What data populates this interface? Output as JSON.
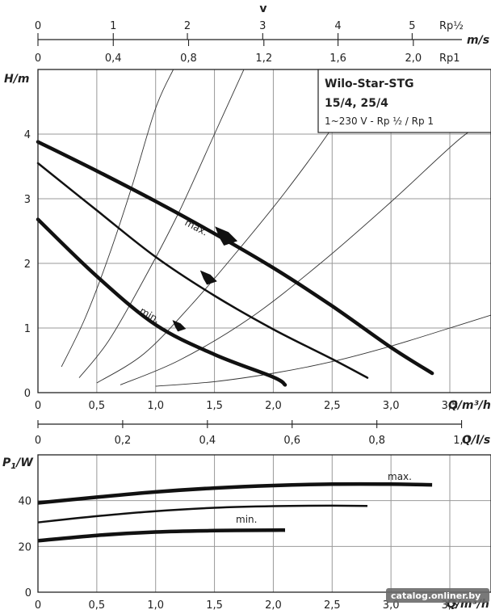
{
  "chart_data": [
    {
      "type": "line",
      "name_ref": "head-chart",
      "title": "Wilo-Star-STG",
      "title_line2": "15/4, 25/4",
      "subtitle": "1~230 V - Rp ½ / Rp 1",
      "xlabel": "Q/m³/h",
      "ylabel": "H/m",
      "xlim": [
        0,
        3.85
      ],
      "ylim": [
        0,
        5
      ],
      "x_ticks": [
        "0",
        "0,5",
        "1,0",
        "1,5",
        "2,0",
        "2,5",
        "3,0",
        "3,5"
      ],
      "x_tick_values": [
        0,
        0.5,
        1.0,
        1.5,
        2.0,
        2.5,
        3.0,
        3.5
      ],
      "y_ticks": [
        "0",
        "1",
        "2",
        "3",
        "4"
      ],
      "y_tick_values": [
        0,
        1,
        2,
        3,
        4
      ],
      "grid": true,
      "series": [
        {
          "name": "max.",
          "width": 4.5,
          "x": [
            0,
            0.5,
            1.0,
            1.5,
            2.0,
            2.5,
            3.0,
            3.35
          ],
          "y": [
            3.88,
            3.43,
            2.96,
            2.46,
            1.93,
            1.34,
            0.7,
            0.3
          ]
        },
        {
          "name": "",
          "width": 2.5,
          "x": [
            0,
            0.5,
            1.0,
            1.5,
            2.0,
            2.5,
            2.8
          ],
          "y": [
            3.55,
            2.82,
            2.1,
            1.5,
            0.98,
            0.52,
            0.23
          ]
        },
        {
          "name": "min.",
          "width": 4.5,
          "x": [
            0,
            0.5,
            1.0,
            1.5,
            2.0,
            2.1
          ],
          "y": [
            2.68,
            1.8,
            1.05,
            0.59,
            0.24,
            0.12
          ]
        }
      ],
      "system_curves": [
        {
          "x": [
            0.2,
            0.4,
            0.6,
            0.8,
            1.0,
            1.15
          ],
          "y": [
            0.4,
            1.15,
            2.1,
            3.2,
            4.4,
            5.0
          ]
        },
        {
          "x": [
            0.35,
            0.6,
            0.9,
            1.2,
            1.5,
            1.75
          ],
          "y": [
            0.23,
            0.8,
            1.75,
            2.8,
            4.0,
            5.0
          ]
        },
        {
          "x": [
            0.5,
            0.9,
            1.3,
            1.7,
            2.1,
            2.5,
            2.8
          ],
          "y": [
            0.15,
            0.6,
            1.35,
            2.2,
            3.1,
            4.1,
            5.0
          ]
        },
        {
          "x": [
            0.7,
            1.2,
            1.8,
            2.4,
            3.0,
            3.6,
            3.85
          ],
          "y": [
            0.12,
            0.5,
            1.15,
            2.0,
            2.95,
            3.95,
            4.2
          ]
        },
        {
          "x": [
            1.0,
            1.5,
            2.0,
            2.5,
            3.0,
            3.5,
            3.85
          ],
          "y": [
            0.1,
            0.17,
            0.3,
            0.48,
            0.72,
            1.0,
            1.2
          ]
        }
      ],
      "markers": [
        {
          "x": 1.6,
          "y": 2.45,
          "size": 1.0
        },
        {
          "x": 1.45,
          "y": 1.8,
          "size": 0.75
        },
        {
          "x": 1.2,
          "y": 1.05,
          "size": 0.6
        }
      ],
      "top_axis_velocity": {
        "label": "v",
        "unit_label": "m/s",
        "rp_half_label": "Rp½",
        "rp1_label": "Rp1",
        "rp_half_ticks": [
          "0",
          "1",
          "2",
          "3",
          "4",
          "5"
        ],
        "rp_half_tick_values_q": [
          0,
          0.64,
          1.27,
          1.91,
          2.55,
          3.18
        ],
        "rp1_ticks": [
          "0",
          "0,4",
          "0,8",
          "1,2",
          "1,6",
          "2,0"
        ],
        "rp1_tick_values_q": [
          0,
          0.64,
          1.28,
          1.92,
          2.55,
          3.19
        ]
      },
      "ls_axis": {
        "label": "Q/l/s",
        "ticks": [
          "0",
          "0,2",
          "0,4",
          "0,6",
          "0,8",
          "1,0"
        ],
        "tick_values_q": [
          0,
          0.72,
          1.44,
          2.16,
          2.88,
          3.6
        ]
      }
    },
    {
      "type": "line",
      "name_ref": "power-chart",
      "xlabel": "Q/m³/h",
      "ylabel_main": "P",
      "ylabel_sub": "1",
      "ylabel_unit": "/W",
      "xlim": [
        0,
        3.85
      ],
      "ylim": [
        0,
        60
      ],
      "x_ticks": [
        "0",
        "0,5",
        "1,0",
        "1,5",
        "2,0",
        "2,5",
        "3,0",
        "3,5"
      ],
      "x_tick_values": [
        0,
        0.5,
        1.0,
        1.5,
        2.0,
        2.5,
        3.0,
        3.5
      ],
      "y_ticks": [
        "0",
        "20",
        "40"
      ],
      "y_tick_values": [
        0,
        20,
        40
      ],
      "grid": true,
      "series": [
        {
          "name": "max.",
          "width": 4.5,
          "x": [
            0,
            0.5,
            1.0,
            1.5,
            2.0,
            2.5,
            3.0,
            3.35
          ],
          "y": [
            39,
            41.5,
            43.8,
            45.5,
            46.6,
            47.2,
            47.2,
            46.9
          ]
        },
        {
          "name": "",
          "width": 2.5,
          "x": [
            0,
            0.5,
            1.0,
            1.5,
            2.0,
            2.5,
            2.8
          ],
          "y": [
            30.5,
            33.2,
            35.4,
            36.9,
            37.6,
            37.8,
            37.7
          ]
        },
        {
          "name": "min.",
          "width": 4.5,
          "x": [
            0,
            0.5,
            1.0,
            1.5,
            2.0,
            2.1
          ],
          "y": [
            22.5,
            24.8,
            26.3,
            26.9,
            27.1,
            27.1
          ]
        }
      ]
    }
  ],
  "watermark": "catalog.onliner.by"
}
